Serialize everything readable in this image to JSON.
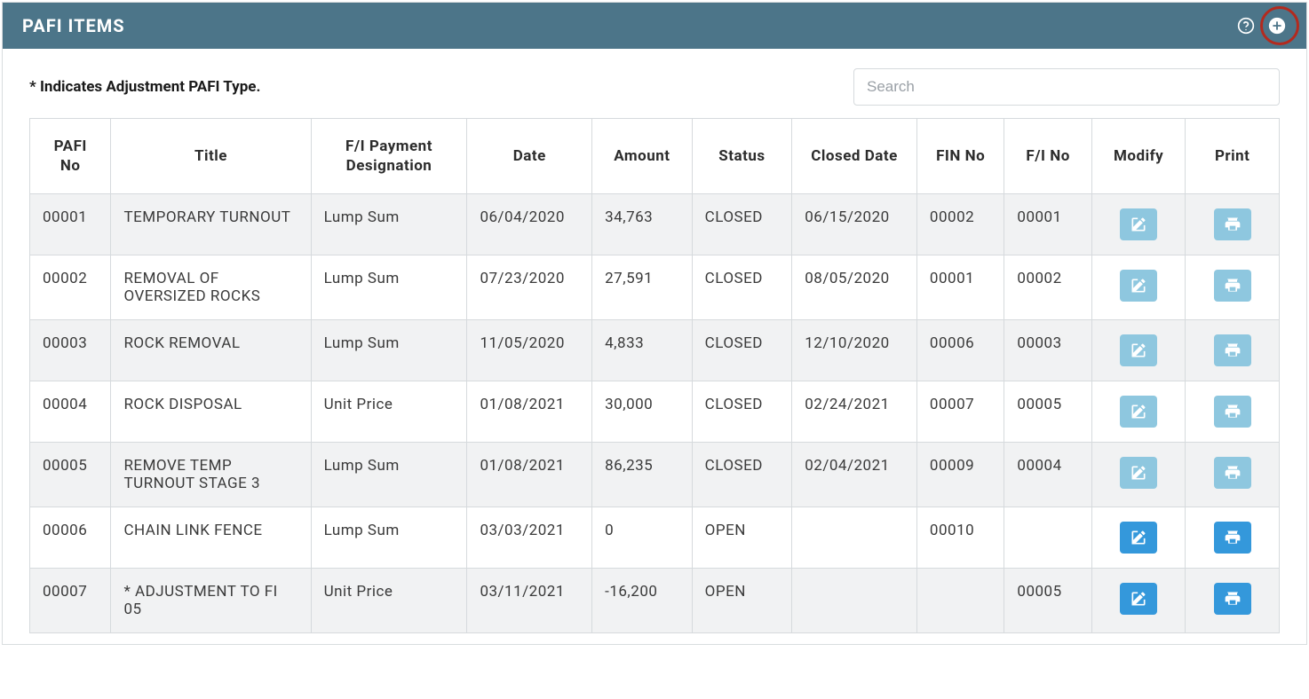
{
  "header": {
    "title": "PAFI ITEMS",
    "header_bg": "#4c7589",
    "highlight_color": "#b32a1e"
  },
  "hint_text": "* Indicates Adjustment PAFI Type.",
  "search": {
    "placeholder": "Search",
    "value": ""
  },
  "columns": [
    "PAFI No",
    "Title",
    "F/I Payment Designation",
    "Date",
    "Amount",
    "Status",
    "Closed Date",
    "FIN No",
    "F/I No",
    "Modify",
    "Print"
  ],
  "colors": {
    "row_odd": "#f1f2f3",
    "row_even": "#ffffff",
    "border": "#d6dadd",
    "btn_light": "#8ec7df",
    "btn_solid": "#3498db"
  },
  "rows": [
    {
      "pafi_no": "00001",
      "title": "TEMPORARY TURNOUT",
      "designation": "Lump Sum",
      "date": "06/04/2020",
      "amount": "34,763",
      "status": "CLOSED",
      "closed_date": "06/15/2020",
      "fin_no": "00002",
      "fi_no": "00001",
      "btn_style": "light"
    },
    {
      "pafi_no": "00002",
      "title": "REMOVAL OF OVERSIZED ROCKS",
      "designation": "Lump Sum",
      "date": "07/23/2020",
      "amount": "27,591",
      "status": "CLOSED",
      "closed_date": "08/05/2020",
      "fin_no": "00001",
      "fi_no": "00002",
      "btn_style": "light"
    },
    {
      "pafi_no": "00003",
      "title": "ROCK REMOVAL",
      "designation": "Lump Sum",
      "date": "11/05/2020",
      "amount": "4,833",
      "status": "CLOSED",
      "closed_date": "12/10/2020",
      "fin_no": "00006",
      "fi_no": "00003",
      "btn_style": "light"
    },
    {
      "pafi_no": "00004",
      "title": "ROCK DISPOSAL",
      "designation": "Unit Price",
      "date": "01/08/2021",
      "amount": "30,000",
      "status": "CLOSED",
      "closed_date": "02/24/2021",
      "fin_no": "00007",
      "fi_no": "00005",
      "btn_style": "light"
    },
    {
      "pafi_no": "00005",
      "title": "REMOVE TEMP TURNOUT STAGE 3",
      "designation": "Lump Sum",
      "date": "01/08/2021",
      "amount": "86,235",
      "status": "CLOSED",
      "closed_date": "02/04/2021",
      "fin_no": "00009",
      "fi_no": "00004",
      "btn_style": "light"
    },
    {
      "pafi_no": "00006",
      "title": "CHAIN LINK FENCE",
      "designation": "Lump Sum",
      "date": "03/03/2021",
      "amount": "0",
      "status": "OPEN",
      "closed_date": "",
      "fin_no": "00010",
      "fi_no": "",
      "btn_style": "solid"
    },
    {
      "pafi_no": "00007",
      "title": "* ADJUSTMENT TO FI 05",
      "designation": "Unit Price",
      "date": "03/11/2021",
      "amount": "-16,200",
      "status": "OPEN",
      "closed_date": "",
      "fin_no": "",
      "fi_no": "00005",
      "btn_style": "solid"
    }
  ]
}
